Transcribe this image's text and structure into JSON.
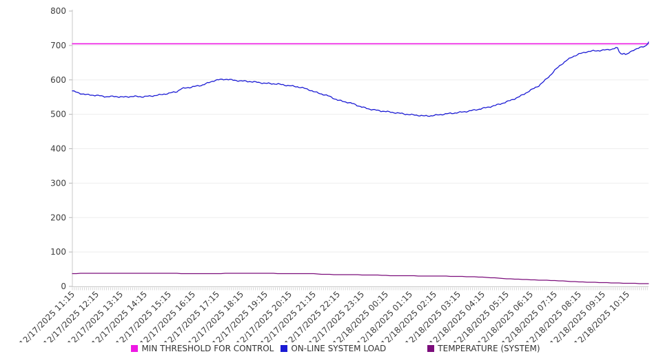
{
  "chart_data": {
    "type": "line",
    "title": "",
    "xlabel": "",
    "ylabel": "",
    "grid": "horizontal",
    "legend_position": "bottom",
    "y_axis": {
      "min": 0,
      "max": 800,
      "tick_step": 100,
      "ticks": [
        0,
        100,
        200,
        300,
        400,
        500,
        600,
        700,
        800
      ]
    },
    "x_axis": {
      "minor_tick_interval_minutes": 5,
      "tick_labels": [
        "12/17/2025 11:15",
        "12/17/2025 12:15",
        "12/17/2025 13:15",
        "12/17/2025 14:15",
        "12/17/2025 15:15",
        "12/17/2025 16:15",
        "12/17/2025 17:15",
        "12/17/2025 18:15",
        "12/17/2025 19:15",
        "12/17/2025 20:15",
        "12/17/2025 21:15",
        "12/17/2025 22:15",
        "12/17/2025 23:15",
        "12/18/2025 00:15",
        "12/18/2025 01:15",
        "12/18/2025 02:15",
        "12/18/2025 03:15",
        "12/18/2025 04:15",
        "12/18/2025 05:15",
        "12/18/2025 06:15",
        "12/18/2025 07:15",
        "12/18/2025 08:15",
        "12/18/2025 09:15",
        "12/18/2025 10:15"
      ]
    },
    "series": [
      {
        "name": "MIN THRESHOLD FOR CONTROL",
        "color": "#EE19E4",
        "kind": "threshold",
        "points": [
          [
            "12/17/2025 11:15",
            705
          ],
          [
            "12/18/2025 11:08",
            705
          ]
        ]
      },
      {
        "name": "ON-LINE SYSTEM LOAD",
        "color": "#1A1AD4",
        "kind": "noisy-line",
        "points": [
          [
            "12/17/2025 11:15",
            568
          ],
          [
            "12/17/2025 11:30",
            562
          ],
          [
            "12/17/2025 11:50",
            557
          ],
          [
            "12/17/2025 12:15",
            555
          ],
          [
            "12/17/2025 12:40",
            551
          ],
          [
            "12/17/2025 13:00",
            552
          ],
          [
            "12/17/2025 13:20",
            550
          ],
          [
            "12/17/2025 13:45",
            552
          ],
          [
            "12/17/2025 14:10",
            551
          ],
          [
            "12/17/2025 14:30",
            553
          ],
          [
            "12/17/2025 14:50",
            556
          ],
          [
            "12/17/2025 15:15",
            561
          ],
          [
            "12/17/2025 15:35",
            566
          ],
          [
            "12/17/2025 15:45",
            574
          ],
          [
            "12/17/2025 16:05",
            578
          ],
          [
            "12/17/2025 16:15",
            580
          ],
          [
            "12/17/2025 16:35",
            584
          ],
          [
            "12/17/2025 16:55",
            592
          ],
          [
            "12/17/2025 17:10",
            599
          ],
          [
            "12/17/2025 17:25",
            601
          ],
          [
            "12/17/2025 17:40",
            602
          ],
          [
            "12/17/2025 17:55",
            599
          ],
          [
            "12/17/2025 18:15",
            597
          ],
          [
            "12/17/2025 18:40",
            595
          ],
          [
            "12/17/2025 19:15",
            590
          ],
          [
            "12/17/2025 19:45",
            588
          ],
          [
            "12/17/2025 20:15",
            583
          ],
          [
            "12/17/2025 20:35",
            580
          ],
          [
            "12/17/2025 20:50",
            576
          ],
          [
            "12/17/2025 21:05",
            571
          ],
          [
            "12/17/2025 21:15",
            566
          ],
          [
            "12/17/2025 21:35",
            559
          ],
          [
            "12/17/2025 21:55",
            552
          ],
          [
            "12/17/2025 22:15",
            541
          ],
          [
            "12/17/2025 22:35",
            536
          ],
          [
            "12/17/2025 22:55",
            530
          ],
          [
            "12/17/2025 23:15",
            521
          ],
          [
            "12/17/2025 23:35",
            515
          ],
          [
            "12/17/2025 23:55",
            511
          ],
          [
            "12/18/2025 00:15",
            508
          ],
          [
            "12/18/2025 00:35",
            505
          ],
          [
            "12/18/2025 00:55",
            502
          ],
          [
            "12/18/2025 01:15",
            499
          ],
          [
            "12/18/2025 01:35",
            497
          ],
          [
            "12/18/2025 01:50",
            495
          ],
          [
            "12/18/2025 02:10",
            496
          ],
          [
            "12/18/2025 02:30",
            499
          ],
          [
            "12/18/2025 02:50",
            502
          ],
          [
            "12/18/2025 03:15",
            505
          ],
          [
            "12/18/2025 03:45",
            510
          ],
          [
            "12/18/2025 04:15",
            517
          ],
          [
            "12/18/2025 04:45",
            525
          ],
          [
            "12/18/2025 05:15",
            536
          ],
          [
            "12/18/2025 05:45",
            550
          ],
          [
            "12/18/2025 06:15",
            570
          ],
          [
            "12/18/2025 06:35",
            583
          ],
          [
            "12/18/2025 06:50",
            598
          ],
          [
            "12/18/2025 07:05",
            615
          ],
          [
            "12/18/2025 07:15",
            628
          ],
          [
            "12/18/2025 07:30",
            644
          ],
          [
            "12/18/2025 07:45",
            657
          ],
          [
            "12/18/2025 08:00",
            668
          ],
          [
            "12/18/2025 08:15",
            675
          ],
          [
            "12/18/2025 08:35",
            682
          ],
          [
            "12/18/2025 08:50",
            684
          ],
          [
            "12/18/2025 09:15",
            686
          ],
          [
            "12/18/2025 09:40",
            690
          ],
          [
            "12/18/2025 09:50",
            694
          ],
          [
            "12/18/2025 09:57",
            678
          ],
          [
            "12/18/2025 10:02",
            674
          ],
          [
            "12/18/2025 10:07",
            679
          ],
          [
            "12/18/2025 10:12",
            672
          ],
          [
            "12/18/2025 10:22",
            680
          ],
          [
            "12/18/2025 10:32",
            688
          ],
          [
            "12/18/2025 10:42",
            692
          ],
          [
            "12/18/2025 10:52",
            695
          ],
          [
            "12/18/2025 11:00",
            698
          ],
          [
            "12/18/2025 11:05",
            704
          ],
          [
            "12/18/2025 11:08",
            710
          ]
        ]
      },
      {
        "name": "TEMPERATURE (SYSTEM)",
        "color": "#7B0D7B",
        "kind": "stepped-line",
        "points": [
          [
            "12/17/2025 11:15",
            37
          ],
          [
            "12/17/2025 11:55",
            38
          ],
          [
            "12/17/2025 14:00",
            38
          ],
          [
            "12/17/2025 17:10",
            37
          ],
          [
            "12/17/2025 18:00",
            38
          ],
          [
            "12/17/2025 21:15",
            37
          ],
          [
            "12/17/2025 21:30",
            35
          ],
          [
            "12/17/2025 23:45",
            33
          ],
          [
            "12/18/2025 00:30",
            31
          ],
          [
            "12/18/2025 02:20",
            30
          ],
          [
            "12/18/2025 03:15",
            29
          ],
          [
            "12/18/2025 04:15",
            27
          ],
          [
            "12/18/2025 05:15",
            22
          ],
          [
            "12/18/2025 06:15",
            19
          ],
          [
            "12/18/2025 07:15",
            17
          ],
          [
            "12/18/2025 08:15",
            13
          ],
          [
            "12/18/2025 09:15",
            11
          ],
          [
            "12/18/2025 10:15",
            9
          ],
          [
            "12/18/2025 11:08",
            8
          ]
        ]
      }
    ]
  }
}
